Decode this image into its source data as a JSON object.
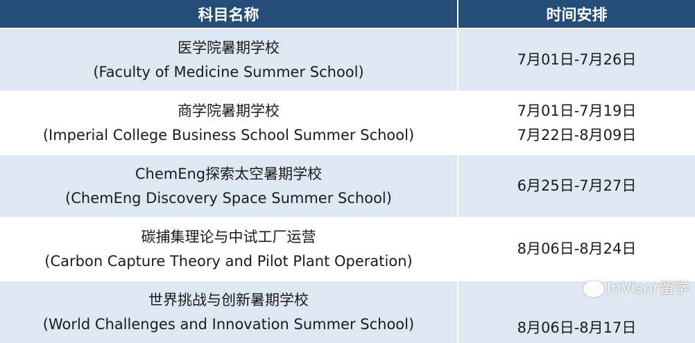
{
  "headers": {
    "name": "科目名称",
    "time": "时间安排"
  },
  "rows": [
    {
      "zh": "医学院暑期学校",
      "en": "(Faculty of Medicine Summer School)",
      "dates": [
        "7月01日-7月26日"
      ]
    },
    {
      "zh": "商学院暑期学校",
      "en": "(Imperial College Business School Summer School)",
      "dates": [
        "7月01日-7月19日",
        "7月22日-8月09日"
      ]
    },
    {
      "zh": "ChemEng探索太空暑期学校",
      "en": "(ChemEng Discovery Space Summer School)",
      "dates": [
        "6月25日-7月27日"
      ]
    },
    {
      "zh": "碳捕集理论与中试工厂运营",
      "en": "(Carbon Capture Theory and Pilot Plant Operation)",
      "dates": [
        "8月06日-8月24日"
      ]
    },
    {
      "zh": "世界挑战与创新暑期学校",
      "en": "(World Challenges and Innovation Summer School)",
      "dates": [
        "8月06日-8月17日"
      ]
    }
  ],
  "watermark": "InVisor留学",
  "colors": {
    "header": "#244e78",
    "alt_row": "#dde8f3"
  }
}
